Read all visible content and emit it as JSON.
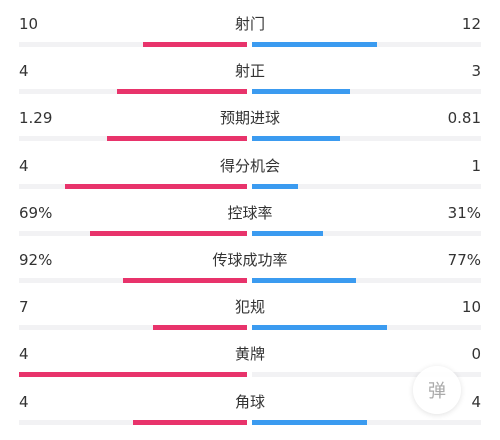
{
  "colors": {
    "home": "#e8336b",
    "away": "#3b9bf0",
    "track": "#f2f2f4"
  },
  "stats": [
    {
      "label": "射门",
      "home": "10",
      "away": "12",
      "home_value": 10,
      "away_value": 12
    },
    {
      "label": "射正",
      "home": "4",
      "away": "3",
      "home_value": 4,
      "away_value": 3
    },
    {
      "label": "预期进球",
      "home": "1.29",
      "away": "0.81",
      "home_value": 1.29,
      "away_value": 0.81
    },
    {
      "label": "得分机会",
      "home": "4",
      "away": "1",
      "home_value": 4,
      "away_value": 1
    },
    {
      "label": "控球率",
      "home": "69%",
      "away": "31%",
      "home_value": 69,
      "away_value": 31
    },
    {
      "label": "传球成功率",
      "home": "92%",
      "away": "77%",
      "home_value": 92,
      "away_value": 77
    },
    {
      "label": "犯规",
      "home": "7",
      "away": "10",
      "home_value": 7,
      "away_value": 10
    },
    {
      "label": "黄牌",
      "home": "4",
      "away": "0",
      "home_value": 4,
      "away_value": 0
    },
    {
      "label": "角球",
      "home": "4",
      "away": "4",
      "home_value": 4,
      "away_value": 4
    }
  ],
  "danmu_button": {
    "label": "弹",
    "icon": "danmaku-icon"
  }
}
